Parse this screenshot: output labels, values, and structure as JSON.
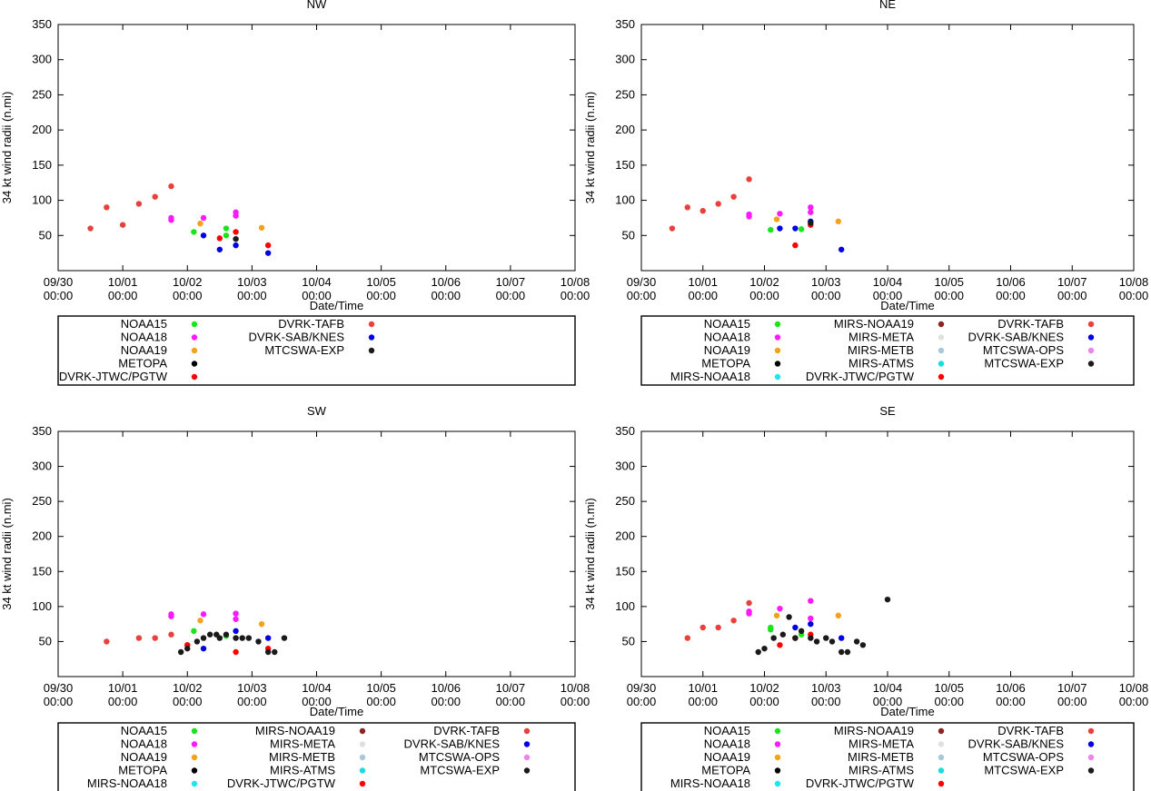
{
  "series_colors": {
    "NOAA15": "#19e619",
    "NOAA18": "#ff19ff",
    "NOAA19": "#f4a21a",
    "METOPA": "#000000",
    "MIRS-NOAA18": "#19e6f2",
    "DVRK-JTWC/PGTW": "#ff0000",
    "MIRS-NOAA19": "#8c2424",
    "MIRS-META": "#e0e0e0",
    "MIRS-METB": "#a8c8d8",
    "MIRS-ATMS": "#19dcdc",
    "DVRK-TAFB": "#e8403a",
    "DVRK-SAB/KNES": "#0000e6",
    "MTCSWA-OPS": "#ee82ee",
    "MTCSWA-EXP": "#1a1a1a"
  },
  "chart_data": [
    {
      "type": "scatter",
      "title": "NW",
      "xlabel": "Date/Time",
      "ylabel": "34 kt wind radii (n.mi)",
      "xlim": [
        0,
        8
      ],
      "ylim": [
        0,
        350
      ],
      "yticks": [
        "350",
        "300",
        "250",
        "200",
        "150",
        "100",
        "50"
      ],
      "xticks": [
        {
          "date": "09/30",
          "time": "00:00"
        },
        {
          "date": "10/01",
          "time": "00:00"
        },
        {
          "date": "10/02",
          "time": "00:00"
        },
        {
          "date": "10/03",
          "time": "00:00"
        },
        {
          "date": "10/04",
          "time": "00:00"
        },
        {
          "date": "10/05",
          "time": "00:00"
        },
        {
          "date": "10/06",
          "time": "00:00"
        },
        {
          "date": "10/07",
          "time": "00:00"
        },
        {
          "date": "10/08",
          "time": "00:00"
        }
      ],
      "legend": {
        "columns": [
          [
            "NOAA15",
            "NOAA18",
            "NOAA19",
            "METOPA",
            "DVRK-JTWC/PGTW"
          ],
          [
            "DVRK-TAFB",
            "DVRK-SAB/KNES",
            "MTCSWA-EXP"
          ]
        ]
      },
      "series": [
        {
          "name": "DVRK-TAFB",
          "points": [
            [
              0.5,
              60
            ],
            [
              0.75,
              90
            ],
            [
              1.0,
              65
            ],
            [
              1.25,
              95
            ],
            [
              1.5,
              105
            ],
            [
              1.75,
              120
            ]
          ]
        },
        {
          "name": "NOAA18",
          "points": [
            [
              1.75,
              75
            ],
            [
              1.75,
              72
            ],
            [
              2.25,
              75
            ],
            [
              2.75,
              83
            ],
            [
              2.75,
              78
            ]
          ]
        },
        {
          "name": "NOAA19",
          "points": [
            [
              2.2,
              67
            ],
            [
              3.15,
              61
            ]
          ]
        },
        {
          "name": "NOAA15",
          "points": [
            [
              2.1,
              55
            ],
            [
              2.6,
              60
            ],
            [
              2.6,
              50
            ]
          ]
        },
        {
          "name": "DVRK-SAB/KNES",
          "points": [
            [
              2.25,
              50
            ],
            [
              2.5,
              30
            ],
            [
              2.75,
              36
            ],
            [
              3.25,
              25
            ]
          ]
        },
        {
          "name": "DVRK-JTWC/PGTW",
          "points": [
            [
              2.5,
              46
            ],
            [
              2.75,
              55
            ],
            [
              3.25,
              36
            ]
          ]
        },
        {
          "name": "MTCSWA-EXP",
          "points": [
            [
              2.75,
              45
            ]
          ]
        }
      ]
    },
    {
      "type": "scatter",
      "title": "NE",
      "xlabel": "Date/Time",
      "ylabel": "34 kt wind radii (n.mi)",
      "xlim": [
        0,
        8
      ],
      "ylim": [
        0,
        350
      ],
      "yticks": [
        "350",
        "300",
        "250",
        "200",
        "150",
        "100",
        "50"
      ],
      "xticks": [
        {
          "date": "09/30",
          "time": "00:00"
        },
        {
          "date": "10/01",
          "time": "00:00"
        },
        {
          "date": "10/02",
          "time": "00:00"
        },
        {
          "date": "10/03",
          "time": "00:00"
        },
        {
          "date": "10/04",
          "time": "00:00"
        },
        {
          "date": "10/05",
          "time": "00:00"
        },
        {
          "date": "10/06",
          "time": "00:00"
        },
        {
          "date": "10/07",
          "time": "00:00"
        },
        {
          "date": "10/08",
          "time": "00:00"
        }
      ],
      "legend": {
        "columns": [
          [
            "NOAA15",
            "NOAA18",
            "NOAA19",
            "METOPA",
            "MIRS-NOAA18"
          ],
          [
            "MIRS-NOAA19",
            "MIRS-META",
            "MIRS-METB",
            "MIRS-ATMS",
            "DVRK-JTWC/PGTW"
          ],
          [
            "DVRK-TAFB",
            "DVRK-SAB/KNES",
            "MTCSWA-OPS",
            "MTCSWA-EXP"
          ]
        ]
      },
      "series": [
        {
          "name": "DVRK-TAFB",
          "points": [
            [
              0.5,
              60
            ],
            [
              0.75,
              90
            ],
            [
              1.0,
              85
            ],
            [
              1.25,
              95
            ],
            [
              1.5,
              105
            ],
            [
              1.75,
              130
            ]
          ]
        },
        {
          "name": "NOAA18",
          "points": [
            [
              1.75,
              80
            ],
            [
              1.75,
              77
            ],
            [
              2.25,
              81
            ],
            [
              2.75,
              90
            ],
            [
              2.75,
              83
            ]
          ]
        },
        {
          "name": "NOAA19",
          "points": [
            [
              2.2,
              73
            ],
            [
              3.2,
              70
            ]
          ]
        },
        {
          "name": "NOAA15",
          "points": [
            [
              2.1,
              58
            ],
            [
              2.6,
              59
            ]
          ]
        },
        {
          "name": "DVRK-SAB/KNES",
          "points": [
            [
              2.25,
              60
            ],
            [
              2.5,
              60
            ],
            [
              2.75,
              70
            ],
            [
              3.25,
              30
            ]
          ]
        },
        {
          "name": "DVRK-JTWC/PGTW",
          "points": [
            [
              2.5,
              36
            ],
            [
              2.75,
              65
            ]
          ]
        },
        {
          "name": "MTCSWA-EXP",
          "points": [
            [
              2.75,
              68
            ]
          ]
        }
      ]
    },
    {
      "type": "scatter",
      "title": "SW",
      "xlabel": "Date/Time",
      "ylabel": "34 kt wind radii (n.mi)",
      "xlim": [
        0,
        8
      ],
      "ylim": [
        0,
        350
      ],
      "yticks": [
        "350",
        "300",
        "250",
        "200",
        "150",
        "100",
        "50"
      ],
      "xticks": [
        {
          "date": "09/30",
          "time": "00:00"
        },
        {
          "date": "10/01",
          "time": "00:00"
        },
        {
          "date": "10/02",
          "time": "00:00"
        },
        {
          "date": "10/03",
          "time": "00:00"
        },
        {
          "date": "10/04",
          "time": "00:00"
        },
        {
          "date": "10/05",
          "time": "00:00"
        },
        {
          "date": "10/06",
          "time": "00:00"
        },
        {
          "date": "10/07",
          "time": "00:00"
        },
        {
          "date": "10/08",
          "time": "00:00"
        }
      ],
      "legend": {
        "columns": [
          [
            "NOAA15",
            "NOAA18",
            "NOAA19",
            "METOPA",
            "MIRS-NOAA18"
          ],
          [
            "MIRS-NOAA19",
            "MIRS-META",
            "MIRS-METB",
            "MIRS-ATMS",
            "DVRK-JTWC/PGTW"
          ],
          [
            "DVRK-TAFB",
            "DVRK-SAB/KNES",
            "MTCSWA-OPS",
            "MTCSWA-EXP"
          ]
        ]
      },
      "series": [
        {
          "name": "DVRK-TAFB",
          "points": [
            [
              0.75,
              50
            ],
            [
              1.25,
              55
            ],
            [
              1.5,
              55
            ],
            [
              1.75,
              60
            ],
            [
              2.0,
              45
            ]
          ]
        },
        {
          "name": "NOAA18",
          "points": [
            [
              1.75,
              89
            ],
            [
              1.75,
              86
            ],
            [
              2.25,
              89
            ],
            [
              2.75,
              90
            ],
            [
              2.75,
              82
            ]
          ]
        },
        {
          "name": "NOAA19",
          "points": [
            [
              2.2,
              80
            ],
            [
              3.15,
              75
            ]
          ]
        },
        {
          "name": "NOAA15",
          "points": [
            [
              2.1,
              65
            ],
            [
              2.6,
              58
            ]
          ]
        },
        {
          "name": "DVRK-SAB/KNES",
          "points": [
            [
              2.25,
              40
            ],
            [
              2.75,
              65
            ],
            [
              3.25,
              55
            ]
          ]
        },
        {
          "name": "DVRK-JTWC/PGTW",
          "points": [
            [
              2.0,
              45
            ],
            [
              2.75,
              35
            ],
            [
              3.25,
              40
            ]
          ]
        },
        {
          "name": "MTCSWA-EXP",
          "points": [
            [
              1.9,
              35
            ],
            [
              2.0,
              40
            ],
            [
              2.15,
              50
            ],
            [
              2.25,
              55
            ],
            [
              2.35,
              60
            ],
            [
              2.45,
              60
            ],
            [
              2.5,
              55
            ],
            [
              2.6,
              60
            ],
            [
              2.75,
              55
            ],
            [
              2.85,
              55
            ],
            [
              2.95,
              55
            ],
            [
              3.1,
              50
            ],
            [
              3.25,
              35
            ],
            [
              3.35,
              35
            ],
            [
              3.5,
              55
            ]
          ]
        }
      ]
    },
    {
      "type": "scatter",
      "title": "SE",
      "xlabel": "Date/Time",
      "ylabel": "34 kt wind radii (n.mi)",
      "xlim": [
        0,
        8
      ],
      "ylim": [
        0,
        350
      ],
      "yticks": [
        "350",
        "300",
        "250",
        "200",
        "150",
        "100",
        "50"
      ],
      "xticks": [
        {
          "date": "09/30",
          "time": "00:00"
        },
        {
          "date": "10/01",
          "time": "00:00"
        },
        {
          "date": "10/02",
          "time": "00:00"
        },
        {
          "date": "10/03",
          "time": "00:00"
        },
        {
          "date": "10/04",
          "time": "00:00"
        },
        {
          "date": "10/05",
          "time": "00:00"
        },
        {
          "date": "10/06",
          "time": "00:00"
        },
        {
          "date": "10/07",
          "time": "00:00"
        },
        {
          "date": "10/08",
          "time": "00:00"
        }
      ],
      "legend": {
        "columns": [
          [
            "NOAA15",
            "NOAA18",
            "NOAA19",
            "METOPA",
            "MIRS-NOAA18"
          ],
          [
            "MIRS-NOAA19",
            "MIRS-META",
            "MIRS-METB",
            "MIRS-ATMS",
            "DVRK-JTWC/PGTW"
          ],
          [
            "DVRK-TAFB",
            "DVRK-SAB/KNES",
            "MTCSWA-OPS",
            "MTCSWA-EXP"
          ]
        ]
      },
      "series": [
        {
          "name": "DVRK-TAFB",
          "points": [
            [
              0.75,
              55
            ],
            [
              1.0,
              70
            ],
            [
              1.25,
              70
            ],
            [
              1.5,
              80
            ],
            [
              1.75,
              105
            ]
          ]
        },
        {
          "name": "NOAA18",
          "points": [
            [
              1.75,
              93
            ],
            [
              1.75,
              90
            ],
            [
              2.25,
              97
            ],
            [
              2.75,
              108
            ],
            [
              2.75,
              83
            ]
          ]
        },
        {
          "name": "NOAA19",
          "points": [
            [
              2.2,
              87
            ],
            [
              3.2,
              87
            ]
          ]
        },
        {
          "name": "NOAA15",
          "points": [
            [
              2.1,
              70
            ],
            [
              2.1,
              67
            ],
            [
              2.6,
              60
            ]
          ]
        },
        {
          "name": "DVRK-SAB/KNES",
          "points": [
            [
              2.5,
              70
            ],
            [
              2.75,
              75
            ],
            [
              3.25,
              55
            ]
          ]
        },
        {
          "name": "DVRK-JTWC/PGTW",
          "points": [
            [
              2.25,
              45
            ],
            [
              2.5,
              55
            ],
            [
              2.75,
              60
            ]
          ]
        },
        {
          "name": "MTCSWA-EXP",
          "points": [
            [
              1.9,
              35
            ],
            [
              2.0,
              40
            ],
            [
              2.15,
              55
            ],
            [
              2.3,
              60
            ],
            [
              2.4,
              85
            ],
            [
              2.5,
              55
            ],
            [
              2.6,
              65
            ],
            [
              2.75,
              55
            ],
            [
              2.85,
              50
            ],
            [
              3.0,
              55
            ],
            [
              3.1,
              50
            ],
            [
              3.25,
              35
            ],
            [
              3.35,
              35
            ],
            [
              3.5,
              50
            ],
            [
              3.6,
              45
            ],
            [
              4.0,
              110
            ]
          ]
        }
      ]
    }
  ]
}
